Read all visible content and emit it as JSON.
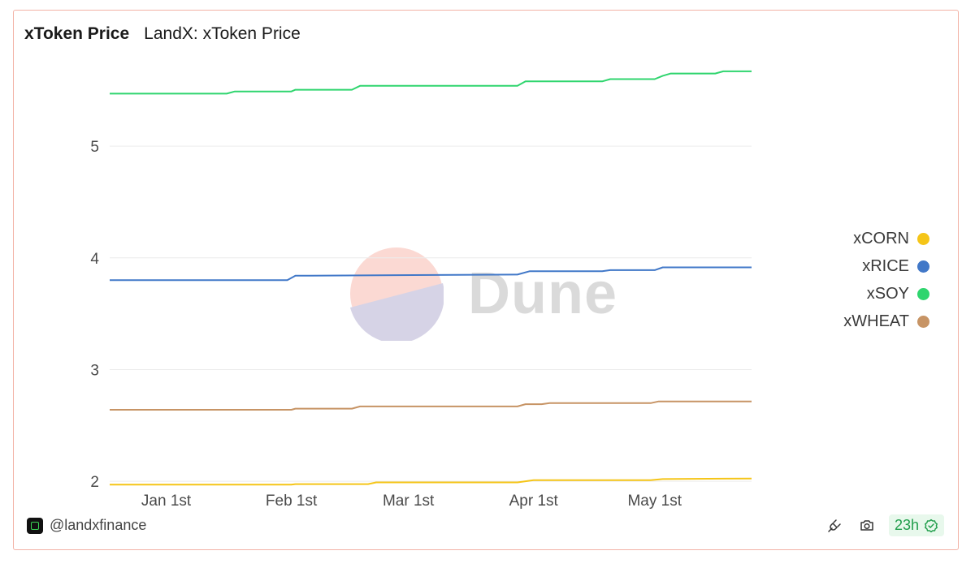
{
  "header": {
    "title": "xToken Price",
    "subtitle": "LandX: xToken Price"
  },
  "watermark": {
    "text": "Dune"
  },
  "footer": {
    "handle": "@landxfinance",
    "refresh_badge": "23h",
    "icons": [
      "plug-icon",
      "camera-icon",
      "check-badge-icon"
    ]
  },
  "colors": {
    "xCORN": "#f5c518",
    "xRICE": "#4178c8",
    "xSOY": "#2fd56e",
    "xWHEAT": "#c79465",
    "border": "#f2b2a6"
  },
  "chart_data": {
    "type": "line",
    "title": "xToken Price",
    "subtitle": "LandX: xToken Price",
    "xlabel": "",
    "ylabel": "",
    "x_ticks": [
      "Jan 1st",
      "Feb 1st",
      "Mar 1st",
      "Apr 1st",
      "May 1st"
    ],
    "x_tick_dates": [
      "2024-01-01",
      "2024-02-01",
      "2024-03-01",
      "2024-04-01",
      "2024-05-01"
    ],
    "x_range": [
      "2023-12-18",
      "2024-05-25"
    ],
    "y_ticks": [
      2,
      3,
      4,
      5
    ],
    "ylim": [
      1.95,
      5.8
    ],
    "grid": true,
    "legend_position": "right",
    "series": [
      {
        "name": "xCORN",
        "color": "#f5c518",
        "points": [
          [
            "2023-12-18",
            1.97
          ],
          [
            "2024-02-01",
            1.97
          ],
          [
            "2024-02-02",
            1.975
          ],
          [
            "2024-02-20",
            1.975
          ],
          [
            "2024-02-22",
            1.99
          ],
          [
            "2024-03-28",
            1.99
          ],
          [
            "2024-04-01",
            2.01
          ],
          [
            "2024-04-30",
            2.01
          ],
          [
            "2024-05-03",
            2.02
          ],
          [
            "2024-05-25",
            2.025
          ]
        ]
      },
      {
        "name": "xRICE",
        "color": "#4178c8",
        "points": [
          [
            "2023-12-18",
            3.8
          ],
          [
            "2024-01-31",
            3.8
          ],
          [
            "2024-02-02",
            3.84
          ],
          [
            "2024-03-28",
            3.85
          ],
          [
            "2024-03-31",
            3.88
          ],
          [
            "2024-04-18",
            3.88
          ],
          [
            "2024-04-20",
            3.89
          ],
          [
            "2024-05-01",
            3.89
          ],
          [
            "2024-05-03",
            3.915
          ],
          [
            "2024-05-25",
            3.915
          ]
        ]
      },
      {
        "name": "xSOY",
        "color": "#2fd56e",
        "points": [
          [
            "2023-12-18",
            5.47
          ],
          [
            "2024-01-16",
            5.47
          ],
          [
            "2024-01-18",
            5.49
          ],
          [
            "2024-02-01",
            5.49
          ],
          [
            "2024-02-02",
            5.505
          ],
          [
            "2024-02-16",
            5.505
          ],
          [
            "2024-02-18",
            5.54
          ],
          [
            "2024-03-28",
            5.54
          ],
          [
            "2024-03-30",
            5.58
          ],
          [
            "2024-04-18",
            5.58
          ],
          [
            "2024-04-20",
            5.6
          ],
          [
            "2024-05-01",
            5.6
          ],
          [
            "2024-05-03",
            5.63
          ],
          [
            "2024-05-05",
            5.65
          ],
          [
            "2024-05-16",
            5.65
          ],
          [
            "2024-05-18",
            5.67
          ],
          [
            "2024-05-25",
            5.67
          ]
        ]
      },
      {
        "name": "xWHEAT",
        "color": "#c79465",
        "points": [
          [
            "2023-12-18",
            2.64
          ],
          [
            "2024-02-01",
            2.64
          ],
          [
            "2024-02-02",
            2.65
          ],
          [
            "2024-02-16",
            2.65
          ],
          [
            "2024-02-18",
            2.67
          ],
          [
            "2024-03-28",
            2.67
          ],
          [
            "2024-03-30",
            2.69
          ],
          [
            "2024-04-03",
            2.69
          ],
          [
            "2024-04-05",
            2.7
          ],
          [
            "2024-04-30",
            2.7
          ],
          [
            "2024-05-02",
            2.715
          ],
          [
            "2024-05-25",
            2.715
          ]
        ]
      }
    ]
  }
}
